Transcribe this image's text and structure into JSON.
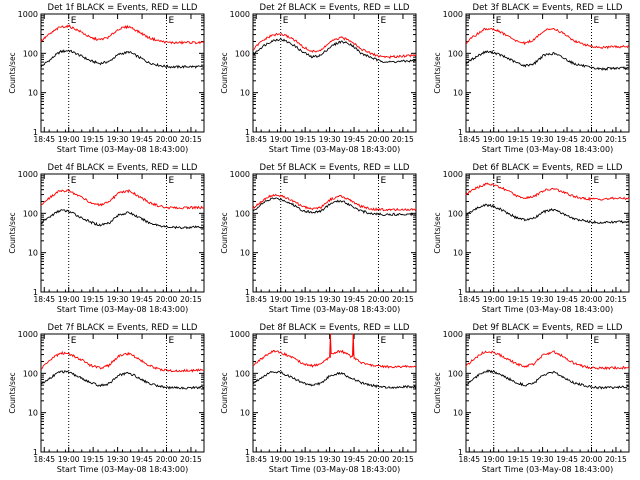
{
  "figure": {
    "ylabel": "Counts/sec",
    "xlabel": "Start Time (03-May-08 18:43:00)",
    "x_ticks": [
      "18:45",
      "19:00",
      "19:15",
      "19:30",
      "19:45",
      "20:00",
      "20:15"
    ],
    "y_ticks": [
      "1",
      "10",
      "100",
      "1000"
    ],
    "marker_labels": [
      "E",
      "E"
    ],
    "colors": {
      "events": "#000000",
      "lld": "#ff0000",
      "background": "#ffffff"
    }
  },
  "chart_data": [
    {
      "type": "line",
      "title": "Det 1f BLACK = Events, RED = LLD",
      "x_unit": "minutes from 18:43",
      "x_range": [
        0,
        100
      ],
      "y_range": [
        1,
        1000
      ],
      "y_scale": "log",
      "vlines": [
        17,
        77
      ],
      "series": [
        {
          "name": "Events",
          "color": "#000000",
          "x": [
            0,
            6,
            12,
            17,
            24,
            30,
            36,
            42,
            48,
            54,
            60,
            66,
            72,
            77,
            84,
            90,
            100
          ],
          "y": [
            45,
            70,
            110,
            118,
            88,
            65,
            55,
            62,
            95,
            108,
            80,
            58,
            50,
            46,
            45,
            46,
            45
          ]
        },
        {
          "name": "LLD",
          "color": "#ff0000",
          "x": [
            0,
            6,
            12,
            17,
            24,
            30,
            36,
            42,
            48,
            54,
            60,
            66,
            72,
            77,
            84,
            90,
            100
          ],
          "y": [
            200,
            320,
            470,
            490,
            360,
            250,
            220,
            260,
            420,
            480,
            350,
            250,
            210,
            190,
            185,
            190,
            185
          ]
        }
      ]
    },
    {
      "type": "line",
      "title": "Det 2f BLACK = Events, RED = LLD",
      "x_unit": "minutes from 18:43",
      "x_range": [
        0,
        100
      ],
      "y_range": [
        1,
        1000
      ],
      "y_scale": "log",
      "vlines": [
        17,
        77
      ],
      "series": [
        {
          "name": "Events",
          "color": "#000000",
          "x": [
            0,
            6,
            12,
            17,
            24,
            30,
            36,
            42,
            48,
            54,
            60,
            66,
            72,
            77,
            84,
            90,
            100
          ],
          "y": [
            90,
            150,
            210,
            230,
            170,
            110,
            80,
            90,
            150,
            200,
            170,
            100,
            80,
            65,
            60,
            62,
            65
          ]
        },
        {
          "name": "LLD",
          "color": "#ff0000",
          "x": [
            0,
            6,
            12,
            17,
            24,
            30,
            36,
            42,
            48,
            54,
            60,
            66,
            72,
            77,
            84,
            90,
            100
          ],
          "y": [
            120,
            210,
            290,
            310,
            240,
            150,
            110,
            120,
            200,
            250,
            210,
            130,
            100,
            85,
            80,
            85,
            90
          ]
        }
      ]
    },
    {
      "type": "line",
      "title": "Det 3f BLACK = Events, RED = LLD",
      "x_unit": "minutes from 18:43",
      "x_range": [
        0,
        100
      ],
      "y_range": [
        1,
        1000
      ],
      "y_scale": "log",
      "vlines": [
        17,
        77
      ],
      "series": [
        {
          "name": "Events",
          "color": "#000000",
          "x": [
            0,
            6,
            12,
            17,
            24,
            30,
            36,
            42,
            48,
            54,
            60,
            66,
            72,
            77,
            84,
            90,
            100
          ],
          "y": [
            55,
            80,
            110,
            105,
            80,
            60,
            48,
            55,
            90,
            100,
            75,
            55,
            48,
            42,
            40,
            42,
            42
          ]
        },
        {
          "name": "LLD",
          "color": "#ff0000",
          "x": [
            0,
            6,
            12,
            17,
            24,
            30,
            36,
            42,
            48,
            54,
            60,
            66,
            72,
            77,
            84,
            90,
            100
          ],
          "y": [
            180,
            290,
            420,
            410,
            300,
            210,
            180,
            220,
            380,
            430,
            310,
            210,
            170,
            150,
            140,
            145,
            150
          ]
        }
      ]
    },
    {
      "type": "line",
      "title": "Det 4f BLACK = Events, RED = LLD",
      "x_unit": "minutes from 18:43",
      "x_range": [
        0,
        100
      ],
      "y_range": [
        1,
        1000
      ],
      "y_scale": "log",
      "vlines": [
        17,
        77
      ],
      "series": [
        {
          "name": "Events",
          "color": "#000000",
          "x": [
            0,
            6,
            12,
            17,
            24,
            30,
            36,
            42,
            48,
            54,
            60,
            66,
            72,
            77,
            84,
            90,
            100
          ],
          "y": [
            55,
            85,
            120,
            112,
            80,
            60,
            50,
            58,
            92,
            105,
            78,
            58,
            50,
            45,
            43,
            44,
            45
          ]
        },
        {
          "name": "LLD",
          "color": "#ff0000",
          "x": [
            0,
            6,
            12,
            17,
            24,
            30,
            36,
            42,
            48,
            54,
            60,
            66,
            72,
            77,
            84,
            90,
            100
          ],
          "y": [
            160,
            260,
            380,
            370,
            270,
            190,
            160,
            190,
            330,
            370,
            270,
            190,
            155,
            140,
            135,
            140,
            140
          ]
        }
      ]
    },
    {
      "type": "line",
      "title": "Det 5f BLACK = Events, RED = LLD",
      "x_unit": "minutes from 18:43",
      "x_range": [
        0,
        100
      ],
      "y_range": [
        1,
        1000
      ],
      "y_scale": "log",
      "vlines": [
        17,
        77
      ],
      "series": [
        {
          "name": "Events",
          "color": "#000000",
          "x": [
            0,
            6,
            12,
            17,
            24,
            30,
            36,
            42,
            48,
            54,
            60,
            66,
            72,
            77,
            84,
            90,
            100
          ],
          "y": [
            110,
            180,
            240,
            230,
            170,
            120,
            105,
            115,
            180,
            210,
            160,
            115,
            100,
            95,
            93,
            95,
            95
          ]
        },
        {
          "name": "LLD",
          "color": "#ff0000",
          "x": [
            0,
            6,
            12,
            17,
            24,
            30,
            36,
            42,
            48,
            54,
            60,
            66,
            72,
            77,
            84,
            90,
            100
          ],
          "y": [
            130,
            210,
            290,
            280,
            210,
            150,
            130,
            145,
            230,
            275,
            210,
            150,
            130,
            125,
            122,
            125,
            125
          ]
        }
      ]
    },
    {
      "type": "line",
      "title": "Det 6f BLACK = Events, RED = LLD",
      "x_unit": "minutes from 18:43",
      "x_range": [
        0,
        100
      ],
      "y_range": [
        1,
        1000
      ],
      "y_scale": "log",
      "vlines": [
        17,
        77
      ],
      "series": [
        {
          "name": "Events",
          "color": "#000000",
          "x": [
            0,
            6,
            12,
            17,
            24,
            30,
            36,
            42,
            48,
            54,
            60,
            66,
            72,
            77,
            84,
            90,
            100
          ],
          "y": [
            90,
            130,
            165,
            150,
            110,
            80,
            68,
            75,
            110,
            125,
            95,
            72,
            65,
            60,
            58,
            60,
            62
          ]
        },
        {
          "name": "LLD",
          "color": "#ff0000",
          "x": [
            0,
            6,
            12,
            17,
            24,
            30,
            36,
            42,
            48,
            54,
            60,
            66,
            72,
            77,
            84,
            90,
            100
          ],
          "y": [
            300,
            430,
            560,
            530,
            400,
            290,
            250,
            270,
            380,
            420,
            340,
            270,
            240,
            230,
            230,
            240,
            240
          ]
        }
      ]
    },
    {
      "type": "line",
      "title": "Det 7f BLACK = Events, RED = LLD",
      "x_unit": "minutes from 18:43",
      "x_range": [
        0,
        100
      ],
      "y_range": [
        1,
        1000
      ],
      "y_scale": "log",
      "vlines": [
        17,
        77
      ],
      "series": [
        {
          "name": "Events",
          "color": "#000000",
          "x": [
            0,
            6,
            12,
            17,
            24,
            30,
            36,
            42,
            48,
            54,
            60,
            66,
            72,
            77,
            84,
            90,
            100
          ],
          "y": [
            50,
            78,
            112,
            105,
            78,
            58,
            48,
            55,
            90,
            102,
            76,
            56,
            48,
            44,
            42,
            43,
            44
          ]
        },
        {
          "name": "LLD",
          "color": "#ff0000",
          "x": [
            0,
            6,
            12,
            17,
            24,
            30,
            36,
            42,
            48,
            54,
            60,
            66,
            72,
            77,
            84,
            90,
            100
          ],
          "y": [
            130,
            220,
            330,
            310,
            230,
            160,
            135,
            160,
            280,
            320,
            230,
            160,
            130,
            118,
            115,
            118,
            120
          ]
        }
      ]
    },
    {
      "type": "line",
      "title": "Det 8f BLACK = Events, RED = LLD",
      "x_unit": "minutes from 18:43",
      "x_range": [
        0,
        100
      ],
      "y_range": [
        1,
        1000
      ],
      "y_scale": "log",
      "vlines": [
        17,
        77
      ],
      "series": [
        {
          "name": "Events",
          "color": "#000000",
          "x": [
            0,
            6,
            12,
            17,
            24,
            30,
            36,
            42,
            48,
            54,
            60,
            66,
            72,
            77,
            84,
            90,
            100
          ],
          "y": [
            55,
            82,
            112,
            105,
            78,
            58,
            50,
            56,
            90,
            102,
            76,
            58,
            50,
            46,
            44,
            45,
            46
          ]
        },
        {
          "name": "LLD",
          "color": "#ff0000",
          "x": [
            0,
            6,
            12,
            17,
            24,
            30,
            36,
            42,
            47,
            47.5,
            48,
            54,
            60,
            61,
            61.5,
            62,
            66,
            72,
            77,
            84,
            90,
            100
          ],
          "y": [
            160,
            250,
            360,
            340,
            250,
            180,
            155,
            175,
            250,
            1000,
            320,
            370,
            270,
            280,
            1000,
            240,
            190,
            160,
            150,
            145,
            148,
            150
          ]
        }
      ]
    },
    {
      "type": "line",
      "title": "Det 9f BLACK = Events, RED = LLD",
      "x_unit": "minutes from 18:43",
      "x_range": [
        0,
        100
      ],
      "y_range": [
        1,
        1000
      ],
      "y_scale": "log",
      "vlines": [
        17,
        77
      ],
      "series": [
        {
          "name": "Events",
          "color": "#000000",
          "x": [
            0,
            6,
            12,
            17,
            24,
            30,
            36,
            42,
            48,
            54,
            60,
            66,
            72,
            77,
            84,
            90,
            100
          ],
          "y": [
            50,
            80,
            115,
            108,
            80,
            60,
            50,
            57,
            92,
            105,
            78,
            58,
            50,
            45,
            43,
            44,
            45
          ]
        },
        {
          "name": "LLD",
          "color": "#ff0000",
          "x": [
            0,
            6,
            12,
            17,
            24,
            30,
            36,
            42,
            48,
            54,
            60,
            66,
            72,
            77,
            84,
            90,
            100
          ],
          "y": [
            150,
            250,
            360,
            340,
            250,
            180,
            150,
            175,
            300,
            350,
            260,
            180,
            150,
            138,
            135,
            138,
            140
          ]
        }
      ]
    }
  ]
}
